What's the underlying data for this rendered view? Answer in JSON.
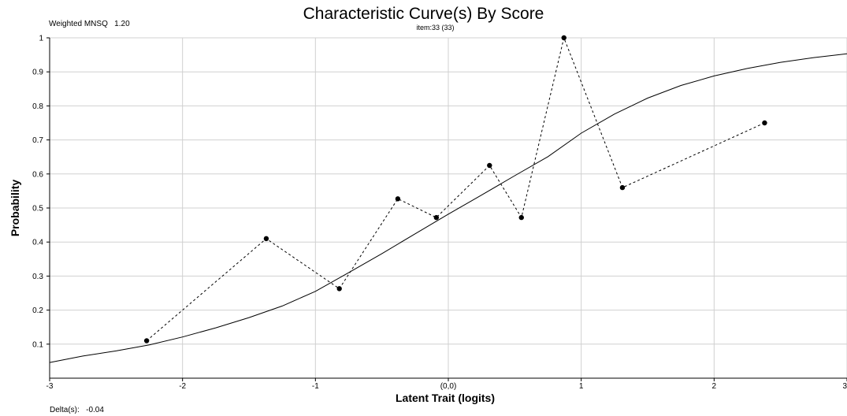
{
  "header": {
    "mnsq_label": "Weighted MNSQ   1.20",
    "delta_label": "Delta(s):   -0.04"
  },
  "chart_data": {
    "type": "line",
    "title": "Characteristic Curve(s) By Score",
    "subtitle": "item:33 (33)",
    "xlabel": "Latent Trait (logits)",
    "ylabel": "Probability",
    "xlim": [
      -3,
      3
    ],
    "ylim": [
      0,
      1
    ],
    "x_ticks": [
      {
        "value": -3,
        "label": "-3"
      },
      {
        "value": -2,
        "label": "-2"
      },
      {
        "value": -1,
        "label": "-1"
      },
      {
        "value": 0,
        "label": "(0,0)"
      },
      {
        "value": 1,
        "label": "1"
      },
      {
        "value": 2,
        "label": "2"
      },
      {
        "value": 3,
        "label": "3"
      }
    ],
    "y_ticks": [
      {
        "value": 0.1,
        "label": "0.1"
      },
      {
        "value": 0.2,
        "label": "0.2"
      },
      {
        "value": 0.3,
        "label": "0.3"
      },
      {
        "value": 0.4,
        "label": "0.4"
      },
      {
        "value": 0.5,
        "label": "0.5"
      },
      {
        "value": 0.6,
        "label": "0.6"
      },
      {
        "value": 0.7,
        "label": "0.7"
      },
      {
        "value": 0.8,
        "label": "0.8"
      },
      {
        "value": 0.9,
        "label": "0.9"
      },
      {
        "value": 1,
        "label": "1"
      }
    ],
    "grid": true,
    "series": [
      {
        "style": "solid",
        "x": [
          -3.0,
          -2.75,
          -2.5,
          -2.25,
          -2.0,
          -1.75,
          -1.5,
          -1.25,
          -1.0,
          -0.75,
          -0.5,
          -0.25,
          0.0,
          0.25,
          0.5,
          0.75,
          1.0,
          1.25,
          1.5,
          1.75,
          2.0,
          2.25,
          2.5,
          2.75,
          3.0
        ],
        "values": [
          0.046,
          0.065,
          0.08,
          0.098,
          0.121,
          0.148,
          0.178,
          0.212,
          0.255,
          0.31,
          0.366,
          0.424,
          0.482,
          0.538,
          0.595,
          0.651,
          0.72,
          0.776,
          0.823,
          0.86,
          0.888,
          0.91,
          0.928,
          0.942,
          0.953
        ]
      },
      {
        "style": "dashed",
        "markers": true,
        "x": [
          -2.27,
          -1.37,
          -0.82,
          -0.38,
          -0.09,
          0.31,
          0.55,
          0.87,
          1.31,
          2.38
        ],
        "values": [
          0.11,
          0.41,
          0.263,
          0.527,
          0.472,
          0.625,
          0.472,
          1.0,
          0.56,
          0.75
        ]
      }
    ],
    "colors": {
      "curve": "#000000",
      "observed": "#000000",
      "grid": "#d0d0d0",
      "axis": "#000000"
    }
  }
}
